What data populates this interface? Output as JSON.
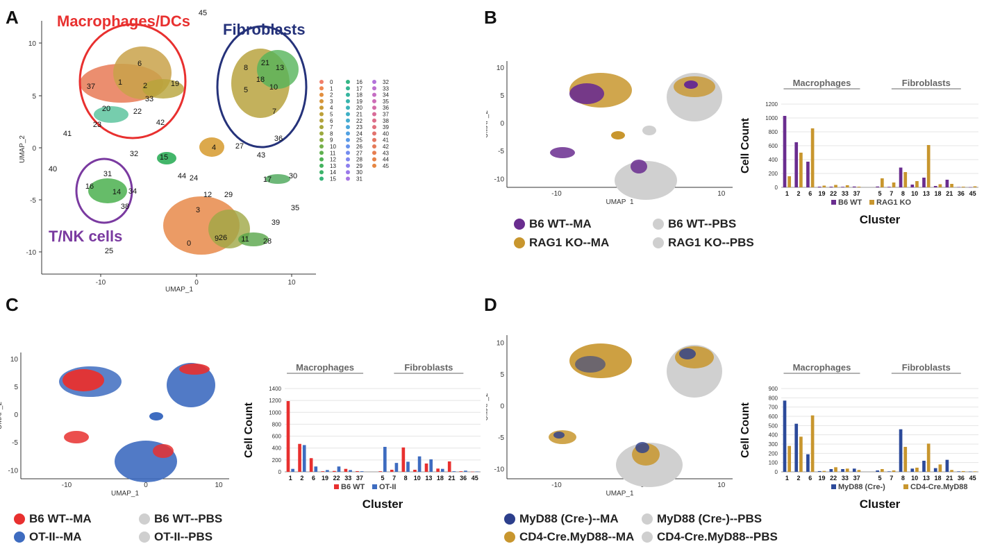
{
  "panels": {
    "a": {
      "letter": "A"
    },
    "b": {
      "letter": "B"
    },
    "c": {
      "letter": "C"
    },
    "d": {
      "letter": "D"
    }
  },
  "umap_a": {
    "xlabel": "UMAP_1",
    "ylabel": "UMAP_2",
    "xticks": [
      "-10",
      "0",
      "10"
    ],
    "yticks": [
      "10",
      "5",
      "0",
      "-5",
      "-10"
    ],
    "callouts": {
      "macrophages": "Macrophages/DCs",
      "fibroblasts": "Fibroblasts",
      "tnk": "T/NK cells"
    },
    "colors": {
      "macrophages": "#e8302f",
      "fibroblasts": "#25327a",
      "tnk": "#7a3aa0"
    },
    "cluster_labels": [
      "0",
      "1",
      "2",
      "3",
      "4",
      "5",
      "6",
      "7",
      "8",
      "9",
      "10",
      "11",
      "12",
      "13",
      "14",
      "15",
      "16",
      "17",
      "18",
      "19",
      "20",
      "21",
      "22",
      "23",
      "24",
      "25",
      "26",
      "27",
      "28",
      "29",
      "30",
      "31",
      "32",
      "33",
      "34",
      "35",
      "36",
      "37",
      "38",
      "39",
      "40",
      "41",
      "42",
      "43",
      "44",
      "45"
    ],
    "legend_numbers": [
      "0",
      "1",
      "2",
      "3",
      "4",
      "5",
      "6",
      "7",
      "8",
      "9",
      "10",
      "11",
      "12",
      "13",
      "14",
      "15",
      "16",
      "17",
      "18",
      "19",
      "20",
      "21",
      "22",
      "23",
      "24",
      "25",
      "26",
      "27",
      "28",
      "29",
      "30",
      "31",
      "32",
      "33",
      "34",
      "35",
      "36",
      "37",
      "38",
      "39",
      "40",
      "41",
      "42",
      "43",
      "44",
      "45"
    ]
  },
  "umap_small": {
    "xlabel": "UMAP_1",
    "ylabel": "UMAP_2",
    "xticks": [
      "-10",
      "0",
      "10"
    ],
    "yticks": [
      "10",
      "5",
      "0",
      "-5",
      "-10"
    ]
  },
  "panel_b_legend": [
    "B6 WT--MA",
    "B6 WT--PBS",
    "RAG1 KO--MA",
    "RAG1 KO--PBS"
  ],
  "panel_c_legend": [
    "B6 WT--MA",
    "B6 WT--PBS",
    "OT-II--MA",
    "OT-II--PBS"
  ],
  "panel_d_legend": [
    "MyD88 (Cre-)--MA",
    "MyD88 (Cre-)--PBS",
    "CD4-Cre.MyD88--MA",
    "CD4-Cre.MyD88--PBS"
  ],
  "legend_colors": {
    "b": [
      "#6a2d8f",
      "#cfcfcf",
      "#c8962e",
      "#cfcfcf"
    ],
    "c": [
      "#e8302f",
      "#cfcfcf",
      "#3e6cc0",
      "#cfcfcf"
    ],
    "d": [
      "#2c3f8c",
      "#cfcfcf",
      "#c8962e",
      "#cfcfcf"
    ]
  },
  "chart_data": [
    {
      "panel": "B",
      "type": "bar",
      "groups": [
        "Macrophages",
        "Fibroblasts"
      ],
      "categories": [
        "1",
        "2",
        "6",
        "19",
        "22",
        "33",
        "37",
        "",
        "5",
        "7",
        "8",
        "10",
        "13",
        "18",
        "21",
        "36",
        "45"
      ],
      "series": [
        {
          "name": "B6 WT",
          "color": "#6a2d8f",
          "values": [
            1030,
            650,
            370,
            10,
            10,
            8,
            12,
            null,
            12,
            8,
            285,
            40,
            140,
            20,
            110,
            5,
            3
          ]
        },
        {
          "name": "RAG1 KO",
          "color": "#c8962e",
          "values": [
            160,
            500,
            850,
            25,
            35,
            30,
            10,
            null,
            130,
            70,
            220,
            90,
            610,
            45,
            50,
            10,
            15
          ]
        }
      ],
      "ylabel": "Cell Count",
      "xlabel": "Cluster",
      "ylim": [
        0,
        1200
      ],
      "yticks": [
        0,
        200,
        400,
        600,
        800,
        1000,
        1200
      ]
    },
    {
      "panel": "C",
      "type": "bar",
      "groups": [
        "Macrophages",
        "Fibroblasts"
      ],
      "categories": [
        "1",
        "2",
        "6",
        "19",
        "22",
        "33",
        "37",
        "",
        "5",
        "7",
        "8",
        "10",
        "13",
        "18",
        "21",
        "36",
        "45"
      ],
      "series": [
        {
          "name": "B6 WT",
          "color": "#e8302f",
          "values": [
            1190,
            470,
            230,
            10,
            15,
            50,
            12,
            null,
            10,
            35,
            410,
            35,
            140,
            55,
            175,
            10,
            3
          ]
        },
        {
          "name": "OT-II",
          "color": "#3e6cc0",
          "values": [
            50,
            450,
            90,
            30,
            90,
            30,
            10,
            null,
            420,
            150,
            170,
            260,
            210,
            50,
            10,
            20,
            5
          ]
        }
      ],
      "ylabel": "Cell Count",
      "xlabel": "Cluster",
      "ylim": [
        0,
        1400
      ],
      "yticks": [
        0,
        200,
        400,
        600,
        800,
        1000,
        1200,
        1400
      ]
    },
    {
      "panel": "D",
      "type": "bar",
      "groups": [
        "Macrophages",
        "Fibroblasts"
      ],
      "categories": [
        "1",
        "2",
        "6",
        "19",
        "22",
        "33",
        "37",
        "",
        "5",
        "7",
        "8",
        "10",
        "13",
        "18",
        "21",
        "36",
        "45"
      ],
      "series": [
        {
          "name": "MyD88 (Cre-)",
          "color": "#2c4a9a",
          "values": [
            770,
            520,
            190,
            8,
            30,
            30,
            35,
            null,
            15,
            5,
            460,
            35,
            120,
            40,
            130,
            5,
            3
          ]
        },
        {
          "name": "CD4-Cre.MyD88",
          "color": "#c8962e",
          "values": [
            280,
            380,
            610,
            10,
            50,
            35,
            20,
            null,
            30,
            15,
            270,
            45,
            305,
            80,
            20,
            8,
            5
          ]
        }
      ],
      "ylabel": "Cell Count",
      "xlabel": "Cluster",
      "ylim": [
        0,
        900
      ],
      "yticks": [
        0,
        100,
        200,
        300,
        400,
        500,
        600,
        700,
        800,
        900
      ]
    }
  ]
}
